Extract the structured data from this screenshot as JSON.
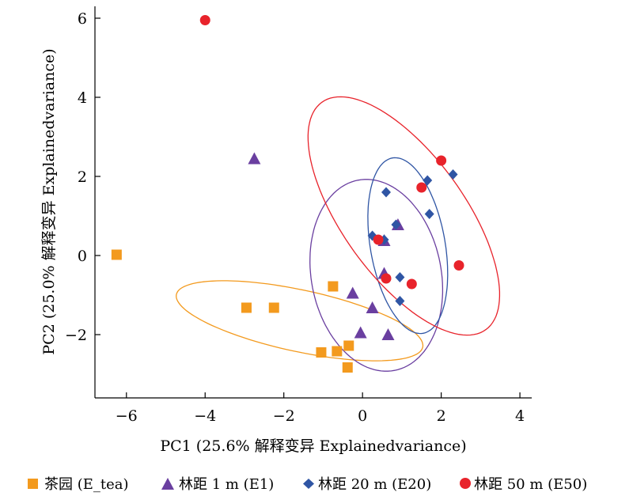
{
  "chart_data": {
    "type": "scatter",
    "xlabel": "PC1 (25.6% 解释变异 Explainedvariance)",
    "ylabel": "PC2 (25.0% 解释变异 Explainedvariance)",
    "xlim": [
      -6.8,
      4.3
    ],
    "ylim": [
      -3.6,
      6.3
    ],
    "xticks": [
      -6,
      -4,
      -2,
      0,
      2,
      4
    ],
    "yticks": [
      -2,
      0,
      2,
      4,
      6
    ],
    "xtick_labels": [
      "−6",
      "−4",
      "−2",
      "0",
      "2",
      "4"
    ],
    "ytick_labels": [
      "−2",
      "0",
      "2",
      "4",
      "6"
    ],
    "grid": false,
    "legend_position": "bottom",
    "series": [
      {
        "name": "茶园 (E_tea)",
        "marker": "square",
        "color": "#F39A1E",
        "points": [
          [
            -6.25,
            0.02
          ],
          [
            -2.95,
            -1.32
          ],
          [
            -2.25,
            -1.32
          ],
          [
            -0.75,
            -0.78
          ],
          [
            -1.05,
            -2.45
          ],
          [
            -0.65,
            -2.42
          ],
          [
            -0.35,
            -2.28
          ],
          [
            -0.38,
            -2.83
          ]
        ],
        "ellipse": {
          "cx": -1.6,
          "cy": -1.65,
          "rx": 3.2,
          "ry": 0.78,
          "angle": -12
        }
      },
      {
        "name": "林距 1 m (E1)",
        "marker": "triangle",
        "color": "#6A3FA0",
        "points": [
          [
            -2.75,
            2.45
          ],
          [
            -0.25,
            -0.95
          ],
          [
            0.25,
            -1.32
          ],
          [
            -0.05,
            -1.95
          ],
          [
            0.65,
            -2.0
          ],
          [
            0.55,
            -0.45
          ],
          [
            0.55,
            0.38
          ],
          [
            0.9,
            0.78
          ]
        ],
        "ellipse": {
          "cx": 0.35,
          "cy": -0.5,
          "rx": 1.65,
          "ry": 2.45,
          "angle": 11
        }
      },
      {
        "name": "林距 20 m (E20)",
        "marker": "diamond",
        "color": "#2F55A4",
        "points": [
          [
            0.25,
            0.5
          ],
          [
            0.6,
            1.6
          ],
          [
            0.85,
            0.78
          ],
          [
            1.65,
            1.9
          ],
          [
            1.7,
            1.05
          ],
          [
            2.3,
            2.05
          ],
          [
            0.95,
            -0.55
          ],
          [
            0.95,
            -1.15
          ],
          [
            0.55,
            0.4
          ]
        ],
        "ellipse": {
          "cx": 1.15,
          "cy": 0.25,
          "rx": 0.95,
          "ry": 2.25,
          "angle": 10
        }
      },
      {
        "name": "林距 50 m (E50)",
        "marker": "circle",
        "color": "#E8232B",
        "points": [
          [
            -4.0,
            5.95
          ],
          [
            2.0,
            2.4
          ],
          [
            1.5,
            1.72
          ],
          [
            0.4,
            0.4
          ],
          [
            0.6,
            -0.58
          ],
          [
            1.25,
            -0.72
          ],
          [
            2.45,
            -0.25
          ]
        ],
        "ellipse": {
          "cx": 1.05,
          "cy": 1.0,
          "rx": 3.55,
          "ry": 1.55,
          "angle": -54
        }
      }
    ]
  }
}
